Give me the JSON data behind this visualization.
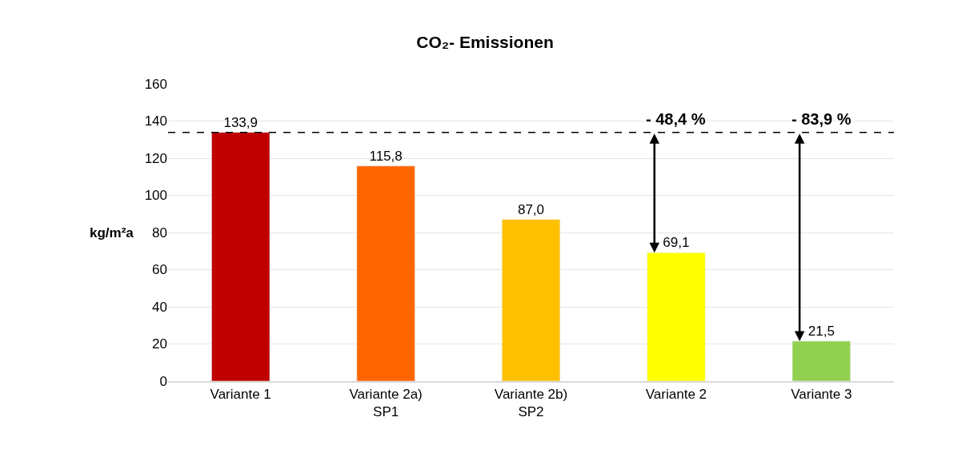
{
  "chart_data": {
    "type": "bar",
    "title": "CO₂- Emissionen",
    "ylabel": "kg/m²a",
    "categories": [
      "Variante 1",
      "Variante 2a)\nSP1",
      "Variante 2b)\nSP2",
      "Variante 2",
      "Variante 3"
    ],
    "values": [
      133.9,
      115.8,
      87.0,
      69.1,
      21.5
    ],
    "colors": [
      "#c00000",
      "#ff6600",
      "#ffc000",
      "#ffff00",
      "#92d050"
    ],
    "value_labels": [
      "133,9",
      "115,8",
      "87,0",
      "69,1",
      "21,5"
    ],
    "ylim": [
      0,
      160
    ],
    "yticks": [
      0,
      20,
      40,
      60,
      80,
      100,
      120,
      140,
      160
    ],
    "grid": "y",
    "ref_lines": [
      {
        "axis": "y",
        "value": 133.9,
        "color": "#000000",
        "line_style": "dashed"
      }
    ],
    "annotations": [
      {
        "text": "- 48,4 %",
        "x": "Variante 2",
        "y": 133.9
      },
      {
        "text": "- 83,9 %",
        "x": "Variante 3",
        "y": 133.9
      }
    ]
  }
}
